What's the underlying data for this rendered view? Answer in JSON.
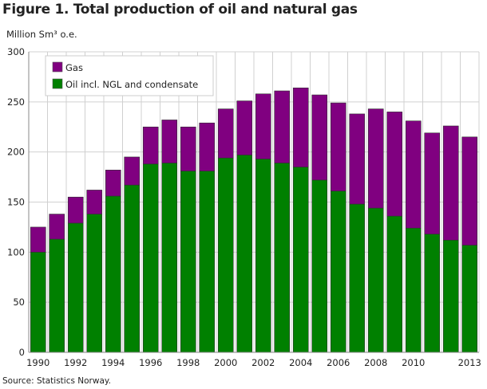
{
  "chart_data": {
    "type": "bar",
    "stacked": true,
    "title": "Figure 1. Total production of oil and natural gas",
    "ylabel": "Million Sm³ o.e.",
    "xlabel": "",
    "ylim": [
      0,
      300
    ],
    "yticks": [
      0,
      50,
      100,
      150,
      200,
      250,
      300
    ],
    "categories": [
      "1990",
      "1991",
      "1992",
      "1993",
      "1994",
      "1995",
      "1996",
      "1997",
      "1998",
      "1999",
      "2000",
      "2001",
      "2002",
      "2003",
      "2004",
      "2005",
      "2006",
      "2007",
      "2008",
      "2009",
      "2010",
      "2011",
      "2012",
      "2013"
    ],
    "xtick_labels": [
      "1990",
      "1992",
      "1994",
      "1996",
      "1998",
      "2000",
      "2002",
      "2004",
      "2006",
      "2008",
      "2010",
      "2013"
    ],
    "series": [
      {
        "name": "Oil incl. NGL and condensate",
        "color": "#008000",
        "values": [
          100,
          113,
          129,
          138,
          156,
          167,
          188,
          189,
          181,
          181,
          194,
          197,
          193,
          189,
          185,
          172,
          161,
          148,
          144,
          136,
          124,
          118,
          112,
          107
        ]
      },
      {
        "name": "Gas",
        "color": "#800080",
        "values": [
          25,
          25,
          26,
          24,
          26,
          28,
          37,
          43,
          44,
          48,
          49,
          54,
          65,
          72,
          79,
          85,
          88,
          90,
          99,
          104,
          107,
          101,
          114,
          108
        ]
      }
    ],
    "legend": {
      "placement": "top-left",
      "entries": [
        "Gas",
        "Oil incl. NGL and condensate"
      ]
    },
    "grid": true,
    "source": "Source: Statistics Norway."
  }
}
